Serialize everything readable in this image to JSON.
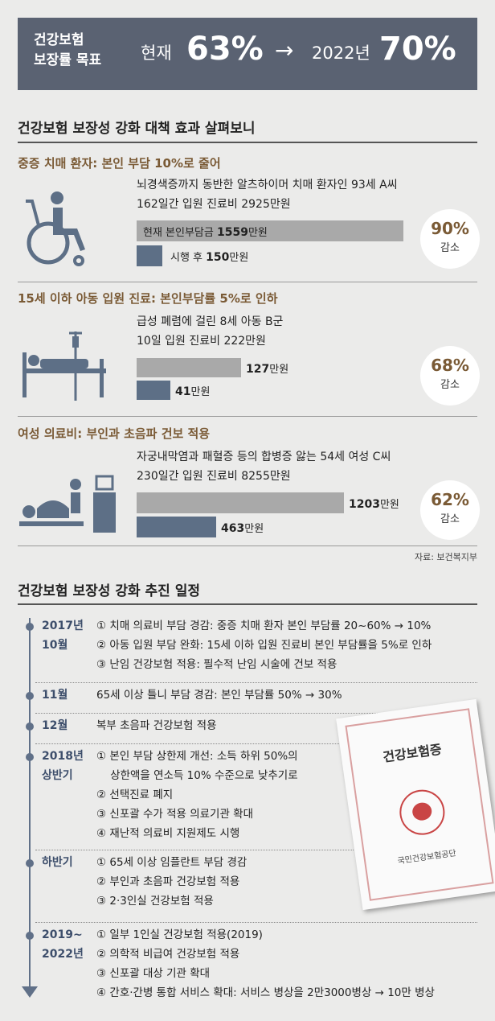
{
  "header": {
    "label_line1": "건강보험",
    "label_line2": "보장률 목표",
    "now_label": "현재",
    "now_value": "63%",
    "arrow": "→",
    "target_year": "2022년",
    "target_value": "70%"
  },
  "section1_title": "건강보험 보장성 강화 대책 효과 살펴보니",
  "chart_data": [
    {
      "type": "bar",
      "title": "중증 치매 환자: 본인 부담 10%로 줄어",
      "description_line1": "뇌경색증까지 동반한 알츠하이머 치매 환자인 93세 A씨",
      "description_line2": "162일간 입원 진료비 2925만원",
      "unit": "만원",
      "categories": [
        "현재 본인부담금",
        "시행 후"
      ],
      "values": [
        1559,
        150
      ],
      "reduction": "90%",
      "reduction_label": "감소",
      "icon": "wheelchair-icon"
    },
    {
      "type": "bar",
      "title": "15세 이하 아동 입원 진료: 본인부담률 5%로 인하",
      "description_line1": "급성 폐렴에 걸린 8세 아동 B군",
      "description_line2": "10일 입원 진료비 222만원",
      "unit": "만원",
      "categories": [
        "",
        ""
      ],
      "values": [
        127,
        41
      ],
      "reduction": "68%",
      "reduction_label": "감소",
      "icon": "hospital-bed-icon"
    },
    {
      "type": "bar",
      "title": "여성 의료비: 부인과 초음파 건보 적용",
      "description_line1": "자궁내막염과 패혈증 등의 합병증 앓는 54세 여성 C씨",
      "description_line2": "230일간 입원 진료비 8255만원",
      "unit": "만원",
      "categories": [
        "",
        ""
      ],
      "values": [
        1203,
        463
      ],
      "reduction": "62%",
      "reduction_label": "감소",
      "icon": "ultrasound-icon"
    }
  ],
  "source": "자료: 보건복지부",
  "section2_title": "건강보험 보장성 강화 추진 일정",
  "timeline": [
    {
      "period1": "2017년",
      "period2": "10월",
      "items": [
        "① 치매 의료비 부담 경감: 중증 치매 환자 본인 부담률 20~60% → 10%",
        "② 아동 입원 부담 완화: 15세 이하 입원 진료비 본인 부담률을 5%로 인하",
        "③ 난임 건강보험 적용: 필수적 난임 시술에 건보 적용"
      ]
    },
    {
      "period1": "11월",
      "period2": "",
      "items": [
        "65세 이상 틀니 부담 경감: 본인 부담률 50% → 30%"
      ]
    },
    {
      "period1": "12월",
      "period2": "",
      "items": [
        "복부 초음파 건강보험 적용"
      ]
    },
    {
      "period1": "2018년",
      "period2": "상반기",
      "items": [
        "① 본인 부담 상한제 개선: 소득 하위 50%의",
        "    상한액을 연소득 10% 수준으로 낮추기로",
        "② 선택진료 폐지",
        "③ 신포괄 수가 적용 의료기관 확대",
        "④ 재난적 의료비 지원제도 시행"
      ]
    },
    {
      "period1": "하반기",
      "period2": "",
      "items": [
        "① 65세 이상 임플란트 부담 경감",
        "② 부인과 초음파 건강보험 적용",
        "③ 2·3인실 건강보험 적용"
      ]
    },
    {
      "period1": "2019~",
      "period2": "2022년",
      "items": [
        "① 일부 1인실 건강보험 적용(2019)",
        "② 의학적 비급여 건강보험 적용",
        "③ 신포괄 대상 기관 확대",
        "④ 간호·간병 통합 서비스 확대: 서비스 병상을 2만3000병상 → 10만 병상"
      ]
    }
  ],
  "card": {
    "title": "건강보험증",
    "issuer": "국민건강보험공단"
  },
  "colors": {
    "header_bg": "#5a6272",
    "accent_brown": "#7a5a35",
    "bar_light": "#a9a9a9",
    "bar_dark": "#5d6f86",
    "timeline": "#607088"
  }
}
